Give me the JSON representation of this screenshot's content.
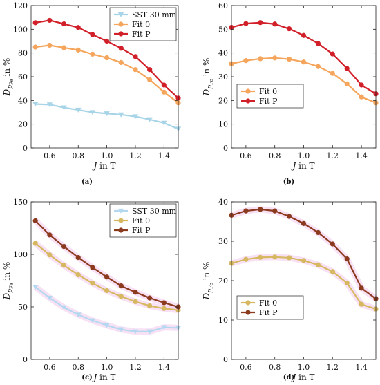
{
  "chart_data": [
    {
      "id": "a",
      "type": "line",
      "caption": "(a)",
      "xlabel": "J in T",
      "ylabel": "D_{p_Fe} in %",
      "xlim": [
        0.47,
        1.5
      ],
      "ylim": [
        0,
        120
      ],
      "xticks": [
        "0.6",
        "0.8",
        "1.0",
        "1.2",
        "1.4"
      ],
      "yticks": [
        "0",
        "20",
        "40",
        "60",
        "80",
        "100",
        "120"
      ],
      "legend_position": "top-right",
      "x": [
        0.5,
        0.6,
        0.7,
        0.8,
        0.9,
        1.0,
        1.1,
        1.2,
        1.3,
        1.4,
        1.5
      ],
      "series": [
        {
          "name": "SST 30 mm",
          "color": "#a8d4e8",
          "marker": "triangle-down",
          "values": [
            37,
            36.5,
            34,
            32,
            30,
            29,
            28,
            26.5,
            24,
            21,
            16
          ]
        },
        {
          "name": "Fit 0",
          "color": "#f5a55c",
          "marker": "circle",
          "values": [
            85,
            86.5,
            84.5,
            82.5,
            79,
            76,
            72,
            66,
            57.5,
            47,
            38
          ]
        },
        {
          "name": "Fit P",
          "color": "#d2202a",
          "marker": "circle",
          "values": [
            105.5,
            107.5,
            104.5,
            101.5,
            95.5,
            90,
            84,
            77,
            66,
            53,
            42
          ]
        }
      ]
    },
    {
      "id": "b",
      "type": "line",
      "caption": "(b)",
      "xlabel": "J in T",
      "ylabel": "D_{p_Fe} in %",
      "xlim": [
        0.5,
        1.5
      ],
      "ylim": [
        0,
        60
      ],
      "xticks": [
        "0.6",
        "0.8",
        "1.0",
        "1.2",
        "1.4"
      ],
      "yticks": [
        "0",
        "10",
        "20",
        "30",
        "40",
        "50",
        "60"
      ],
      "legend_position": "bottom-left",
      "x": [
        0.5,
        0.6,
        0.7,
        0.8,
        0.9,
        1.0,
        1.1,
        1.2,
        1.3,
        1.4,
        1.5
      ],
      "series": [
        {
          "name": "Fit 0",
          "color": "#f5a55c",
          "marker": "circle",
          "values": [
            35.5,
            36.8,
            37.6,
            37.9,
            37.4,
            36.2,
            34.3,
            31.4,
            27,
            21.5,
            19
          ]
        },
        {
          "name": "Fit P",
          "color": "#d2202a",
          "marker": "circle",
          "values": [
            50.8,
            52.4,
            52.8,
            52.2,
            50.2,
            47.4,
            44,
            39.6,
            33.5,
            26.5,
            22.8
          ]
        }
      ]
    },
    {
      "id": "c",
      "type": "line",
      "caption": "(c)",
      "xlabel": "J in T",
      "ylabel": "D_{p_Fe} in %",
      "xlim": [
        0.47,
        1.5
      ],
      "ylim": [
        0,
        150
      ],
      "xticks": [
        "0.6",
        "0.8",
        "1.0",
        "1.2",
        "1.4"
      ],
      "yticks": [
        "0",
        "50",
        "100",
        "150"
      ],
      "legend_position": "top-right",
      "x": [
        0.5,
        0.6,
        0.7,
        0.8,
        0.9,
        1.0,
        1.1,
        1.2,
        1.3,
        1.4,
        1.5
      ],
      "series": [
        {
          "name": "SST 30 mm",
          "color": "#b4d8f0",
          "marker": "triangle-down",
          "values": [
            69,
            58.5,
            49.5,
            42.5,
            37,
            32.5,
            28.5,
            26.5,
            26.5,
            30.5,
            30
          ]
        },
        {
          "name": "Fit 0",
          "color": "#d6b860",
          "marker": "circle",
          "values": [
            110.5,
            99.5,
            89.5,
            80.5,
            72.5,
            65.5,
            60,
            55,
            51,
            48.5,
            47
          ]
        },
        {
          "name": "Fit P",
          "color": "#8b3a1e",
          "marker": "circle",
          "values": [
            132,
            118.5,
            107.5,
            97,
            87.5,
            78.5,
            70,
            64,
            58.5,
            54,
            50
          ]
        }
      ]
    },
    {
      "id": "d",
      "type": "line",
      "caption": "(d)",
      "xlabel": "J in T",
      "ylabel": "D_{p_Fe} in %",
      "xlim": [
        0.5,
        1.5
      ],
      "ylim": [
        0,
        40
      ],
      "xticks": [
        "0.6",
        "0.8",
        "1.0",
        "1.2",
        "1.4"
      ],
      "yticks": [
        "0",
        "10",
        "20",
        "30",
        "40"
      ],
      "legend_position": "bottom-left",
      "x": [
        0.5,
        0.6,
        0.7,
        0.8,
        0.9,
        1.0,
        1.1,
        1.2,
        1.3,
        1.4,
        1.5
      ],
      "series": [
        {
          "name": "Fit 0",
          "color": "#d6b860",
          "marker": "circle",
          "values": [
            24.4,
            25.4,
            25.9,
            26,
            25.8,
            25.1,
            24,
            22.3,
            19.4,
            14,
            12.8
          ]
        },
        {
          "name": "Fit P",
          "color": "#8b3a1e",
          "marker": "circle",
          "values": [
            36.6,
            37.7,
            38.1,
            37.7,
            36.3,
            34.5,
            32.2,
            29.3,
            25.5,
            18.1,
            15.4
          ]
        }
      ]
    }
  ]
}
